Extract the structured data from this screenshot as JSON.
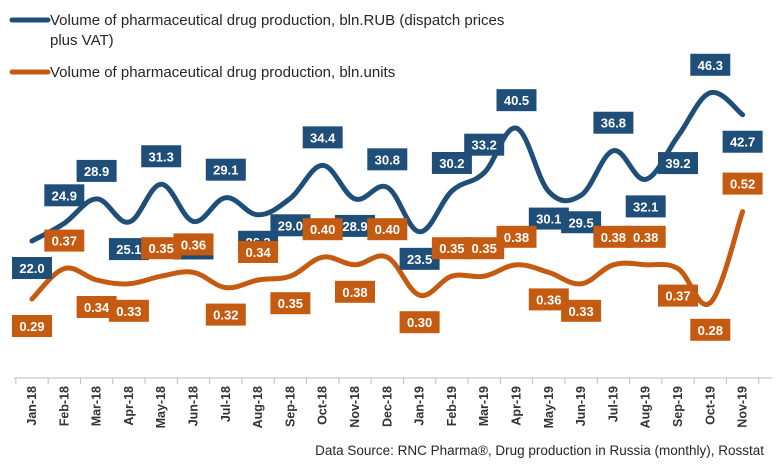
{
  "chart_data": {
    "type": "line",
    "categories": [
      "Jan-18",
      "Feb-18",
      "Mar-18",
      "Apr-18",
      "May-18",
      "Jun-18",
      "Jul-18",
      "Aug-18",
      "Sep-18",
      "Oct-18",
      "Nov-18",
      "Dec-18",
      "Jan-19",
      "Feb-19",
      "Mar-19",
      "Apr-19",
      "May-19",
      "Jun-19",
      "Jul-19",
      "Aug-19",
      "Sep-19",
      "Oct-19",
      "Nov-19"
    ],
    "series": [
      {
        "name": "Volume of pharmaceutical drug production, bln.RUB (dispatch prices plus VAT)",
        "name_lines": [
          "Volume of pharmaceutical drug production, bln.RUB (dispatch prices",
          "plus VAT)"
        ],
        "color": "#1f4e79",
        "values": [
          22.0,
          24.9,
          28.9,
          25.1,
          31.3,
          25.2,
          29.1,
          26.3,
          29.0,
          34.4,
          28.9,
          30.8,
          23.5,
          30.2,
          33.2,
          40.5,
          30.1,
          29.5,
          36.8,
          32.1,
          39.2,
          46.3,
          42.7
        ],
        "labels": [
          "22.0",
          "24.9",
          "28.9",
          "25.1",
          "31.3",
          "25.2",
          "29.1",
          "26.3",
          "29.0",
          "34.4",
          "28.9",
          "30.8",
          "23.5",
          "30.2",
          "33.2",
          "40.5",
          "30.1",
          "29.5",
          "36.8",
          "32.1",
          "39.2",
          "46.3",
          "42.7"
        ]
      },
      {
        "name": "Volume of pharmaceutical drug production, bln.units",
        "name_lines": [
          "Volume of pharmaceutical drug production, bln.units"
        ],
        "color": "#c55a11",
        "values": [
          0.29,
          0.37,
          0.34,
          0.33,
          0.35,
          0.36,
          0.32,
          0.34,
          0.35,
          0.4,
          0.38,
          0.4,
          0.3,
          0.35,
          0.35,
          0.38,
          0.36,
          0.33,
          0.38,
          0.38,
          0.37,
          0.28,
          0.52
        ],
        "labels": [
          "0.29",
          "0.37",
          "0.34",
          "0.33",
          "0.35",
          "0.36",
          "0.32",
          "0.34",
          "0.35",
          "0.40",
          "0.38",
          "0.40",
          "0.30",
          "0.35",
          "0.35",
          "0.38",
          "0.36",
          "0.33",
          "0.38",
          "0.38",
          "0.37",
          "0.28",
          "0.52"
        ]
      }
    ],
    "grid": false,
    "legend_position": "top-left",
    "source": "Data Source: RNC Pharma®, Drug production in Russia (monthly), Rosstat"
  }
}
